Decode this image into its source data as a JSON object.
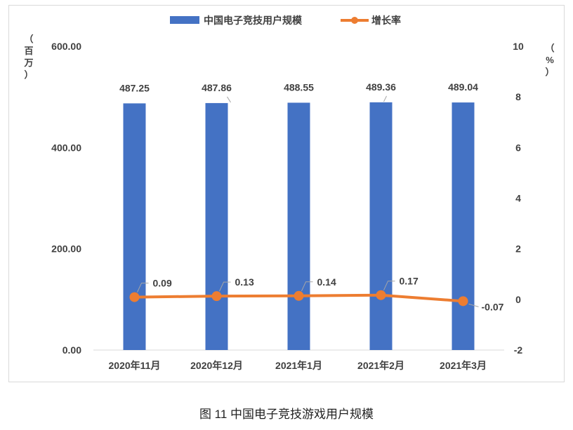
{
  "caption": "图 11  中国电子竞技游戏用户规模",
  "chart_data": {
    "type": "bar",
    "categories": [
      "2020年11月",
      "2020年12月",
      "2021年1月",
      "2021年2月",
      "2021年3月"
    ],
    "series": [
      {
        "name": "中国电子竞技用户规模",
        "type": "bar",
        "axis": "left",
        "color": "#4472c4",
        "values": [
          487.25,
          487.86,
          488.55,
          489.36,
          489.04
        ],
        "labels": [
          "487.25",
          "487.86",
          "488.55",
          "489.36",
          "489.04"
        ]
      },
      {
        "name": "增长率",
        "type": "line",
        "axis": "right",
        "color": "#ed7d31",
        "values": [
          0.09,
          0.13,
          0.14,
          0.17,
          -0.07
        ],
        "labels": [
          "0.09",
          "0.13",
          "0.14",
          "0.17",
          "-0.07"
        ]
      }
    ],
    "y_left": {
      "unit": "（百万）",
      "min": 0,
      "max": 600,
      "ticks": [
        "0.00",
        "200.00",
        "400.00",
        "600.00"
      ]
    },
    "y_right": {
      "unit": "（%）",
      "min": -2,
      "max": 10,
      "ticks": [
        "-2",
        "0",
        "2",
        "4",
        "6",
        "8",
        "10"
      ]
    },
    "legend_position": "top-center",
    "grid": false
  }
}
